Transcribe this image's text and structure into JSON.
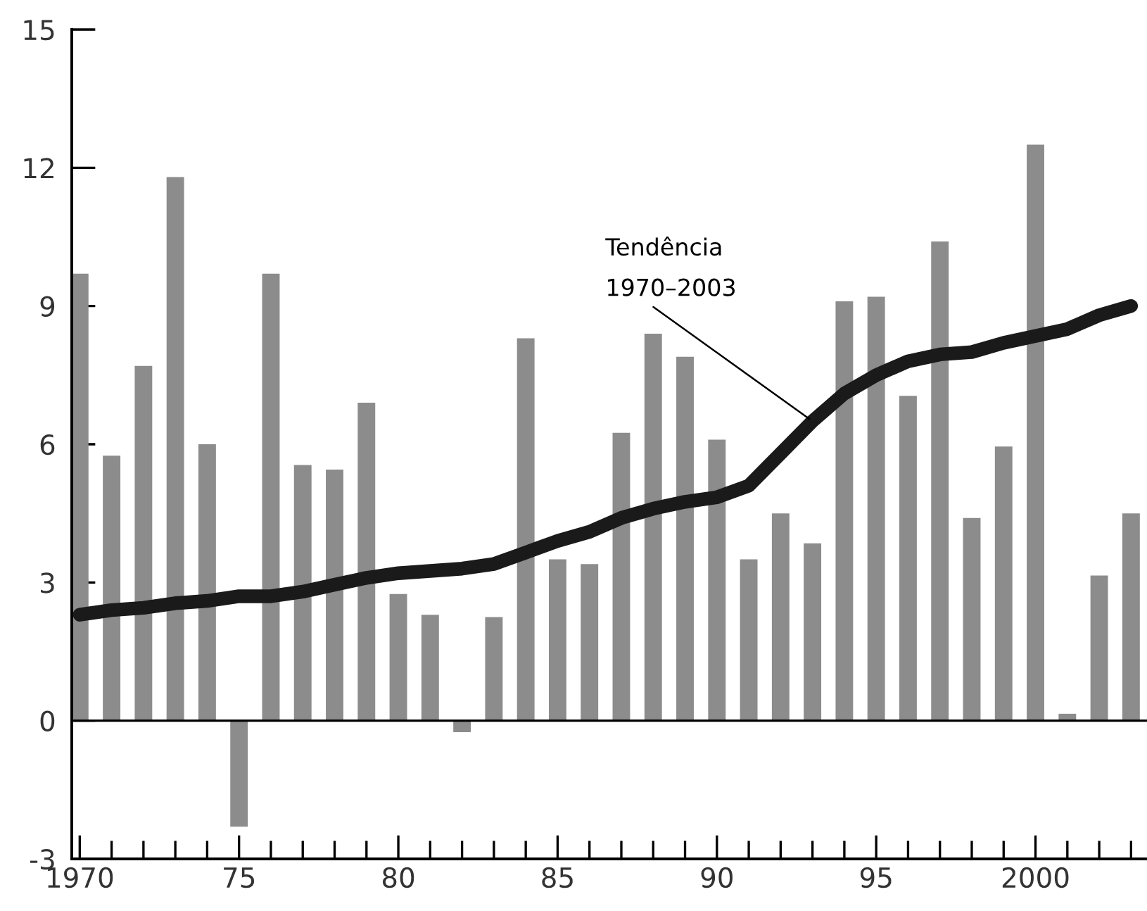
{
  "chart_data": {
    "type": "bar",
    "x": [
      1970,
      1971,
      1972,
      1973,
      1974,
      1975,
      1976,
      1977,
      1978,
      1979,
      1980,
      1981,
      1982,
      1983,
      1984,
      1985,
      1986,
      1987,
      1988,
      1989,
      1990,
      1991,
      1992,
      1993,
      1994,
      1995,
      1996,
      1997,
      1998,
      1999,
      2000,
      2001,
      2002,
      2003
    ],
    "series": [
      {
        "color": "#8c8c8c",
        "values": [
          9.7,
          5.75,
          7.7,
          11.8,
          6.0,
          -2.3,
          9.7,
          5.55,
          5.45,
          6.9,
          2.75,
          2.3,
          -0.25,
          2.25,
          8.3,
          3.5,
          3.4,
          6.25,
          8.4,
          7.9,
          6.1,
          3.5,
          4.5,
          3.85,
          9.1,
          9.2,
          7.05,
          10.4,
          4.4,
          5.95,
          12.5,
          0.15,
          3.15,
          4.5
        ]
      },
      {
        "type": "line",
        "color": "#1a1a1a",
        "values": [
          2.3,
          2.4,
          2.45,
          2.55,
          2.6,
          2.7,
          2.7,
          2.8,
          2.95,
          3.1,
          3.2,
          3.25,
          3.3,
          3.4,
          3.65,
          3.9,
          4.1,
          4.4,
          4.6,
          4.75,
          4.85,
          5.1,
          5.8,
          6.5,
          7.1,
          7.5,
          7.8,
          7.95,
          8.0,
          8.2,
          8.35,
          8.5,
          8.8,
          9.0
        ]
      }
    ],
    "annotations": [
      {
        "text": "Tendência\n1970–2003",
        "x": 1993,
        "y": 6.5
      }
    ],
    "ref_lines": [
      {
        "axis": "y",
        "value": 0,
        "color": "#000000"
      }
    ],
    "xlim": [
      1969.75,
      2003.5
    ],
    "xticks": [
      1970,
      {
        "value": 1971,
        "label": null
      },
      {
        "value": 1972,
        "label": null
      },
      {
        "value": 1973,
        "label": null
      },
      {
        "value": 1974,
        "label": null
      },
      {
        "value": 1975,
        "label": "75"
      },
      {
        "value": 1976,
        "label": null
      },
      {
        "value": 1977,
        "label": null
      },
      {
        "value": 1978,
        "label": null
      },
      {
        "value": 1979,
        "label": null
      },
      {
        "value": 1980,
        "label": "80"
      },
      {
        "value": 1981,
        "label": null
      },
      {
        "value": 1982,
        "label": null
      },
      {
        "value": 1983,
        "label": null
      },
      {
        "value": 1984,
        "label": null
      },
      {
        "value": 1985,
        "label": "85"
      },
      {
        "value": 1986,
        "label": null
      },
      {
        "value": 1987,
        "label": null
      },
      {
        "value": 1988,
        "label": null
      },
      {
        "value": 1989,
        "label": null
      },
      {
        "value": 1990,
        "label": "90"
      },
      {
        "value": 1991,
        "label": null
      },
      {
        "value": 1992,
        "label": null
      },
      {
        "value": 1993,
        "label": null
      },
      {
        "value": 1994,
        "label": null
      },
      {
        "value": 1995,
        "label": "95"
      },
      {
        "value": 1996,
        "label": null
      },
      {
        "value": 1997,
        "label": null
      },
      {
        "value": 1998,
        "label": null
      },
      {
        "value": 1999,
        "label": null
      },
      2000,
      {
        "value": 2001,
        "label": null
      },
      {
        "value": 2002,
        "label": null
      },
      {
        "value": 2003,
        "label": null
      }
    ],
    "ylim": [
      -3,
      15
    ],
    "yticks": [
      -3,
      0,
      3,
      6,
      9,
      12,
      15
    ],
    "grid": false,
    "legend": false
  }
}
